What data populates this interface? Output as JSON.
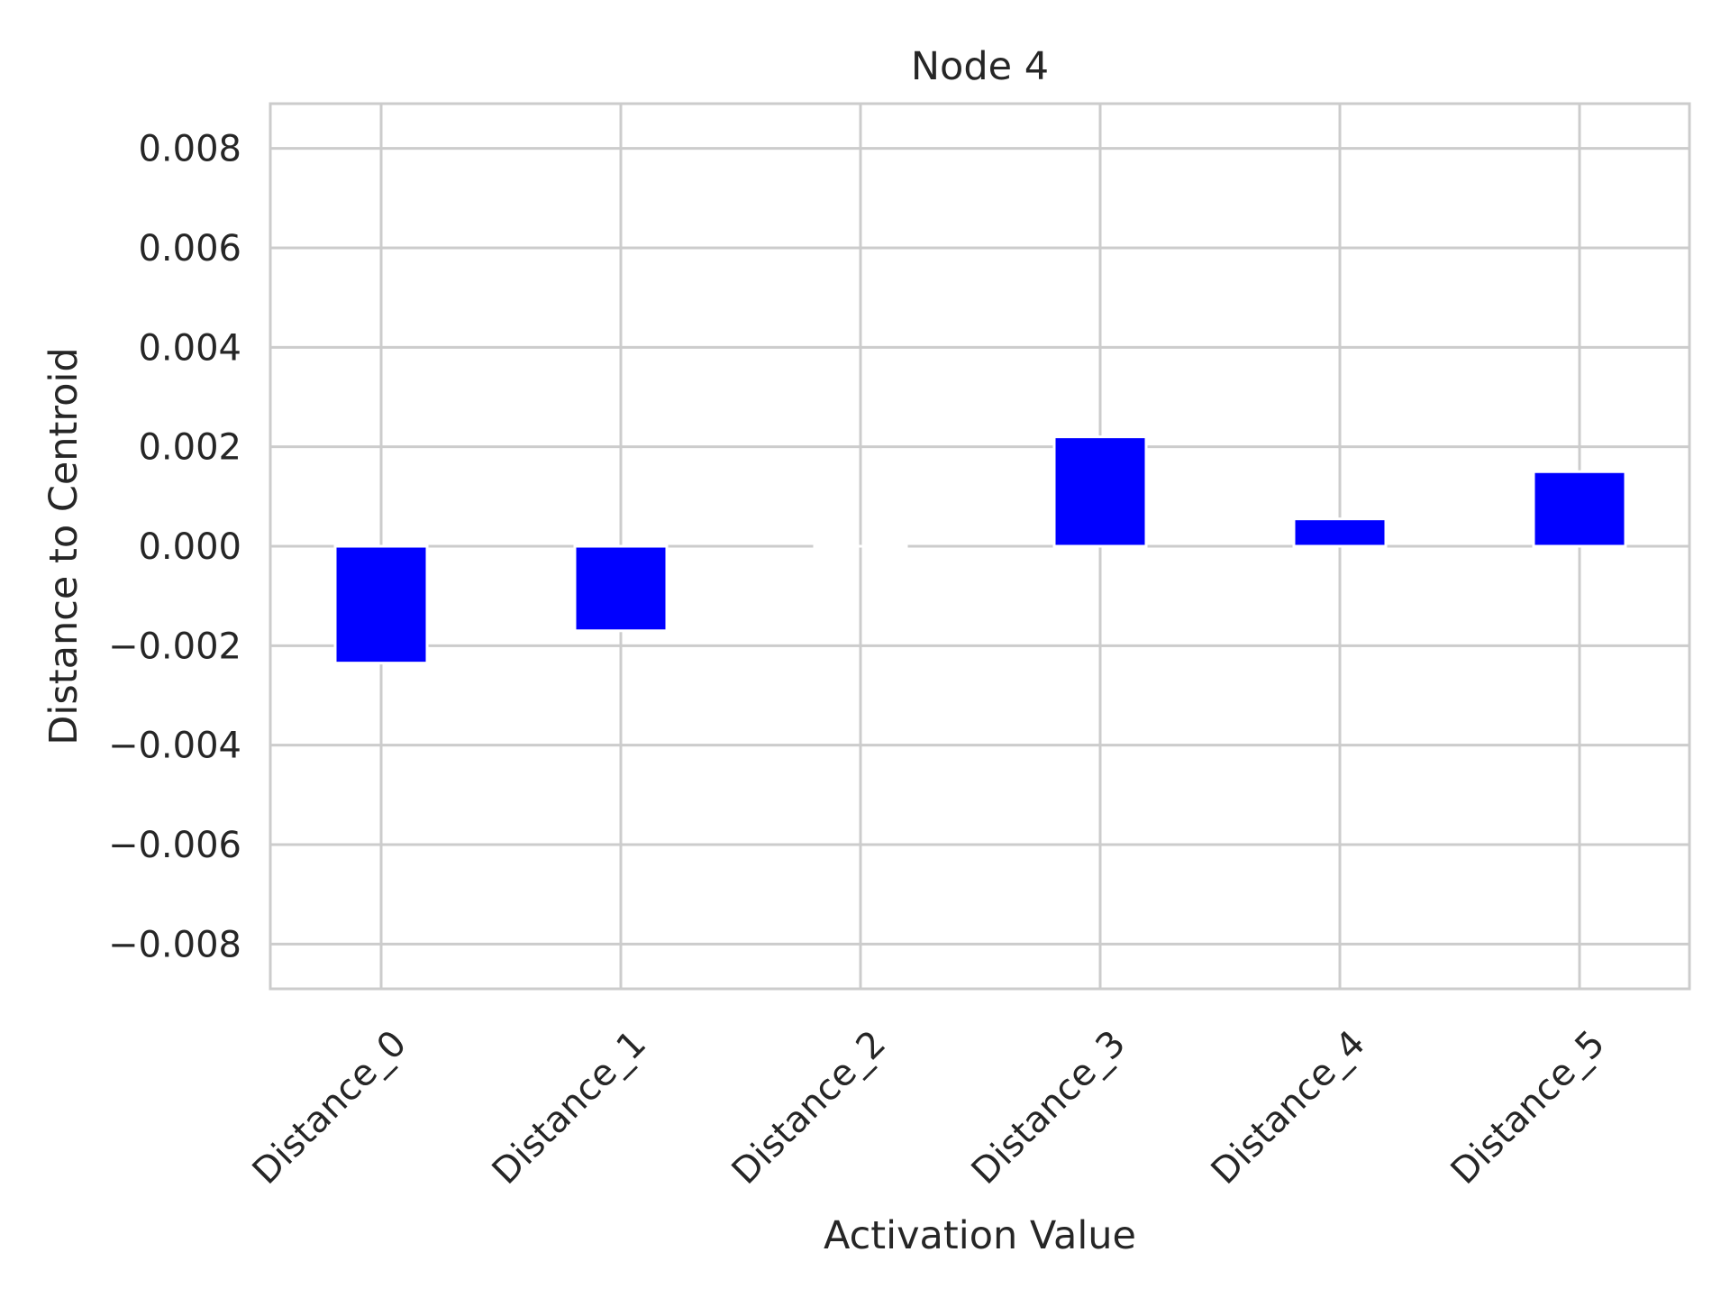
{
  "chart_data": {
    "type": "bar",
    "title": "Node 4",
    "xlabel": "Activation Value",
    "ylabel": "Distance to Centroid",
    "categories": [
      "Distance_0",
      "Distance_1",
      "Distance_2",
      "Distance_3",
      "Distance_4",
      "Distance_5"
    ],
    "values": [
      -0.00235,
      -0.0017,
      0.0,
      0.0022,
      0.00055,
      0.0015
    ],
    "ylim": [
      -0.0089,
      0.0089
    ],
    "yticks": [
      -0.008,
      -0.006,
      -0.004,
      -0.002,
      0.0,
      0.002,
      0.004,
      0.006,
      0.008
    ],
    "ytick_labels": [
      "−0.008",
      "−0.006",
      "−0.004",
      "−0.002",
      "0.000",
      "0.002",
      "0.004",
      "0.006",
      "0.008"
    ],
    "grid": true,
    "bar_color": "#0000ff",
    "grid_color": "#cccccc",
    "text_color": "#262626"
  }
}
